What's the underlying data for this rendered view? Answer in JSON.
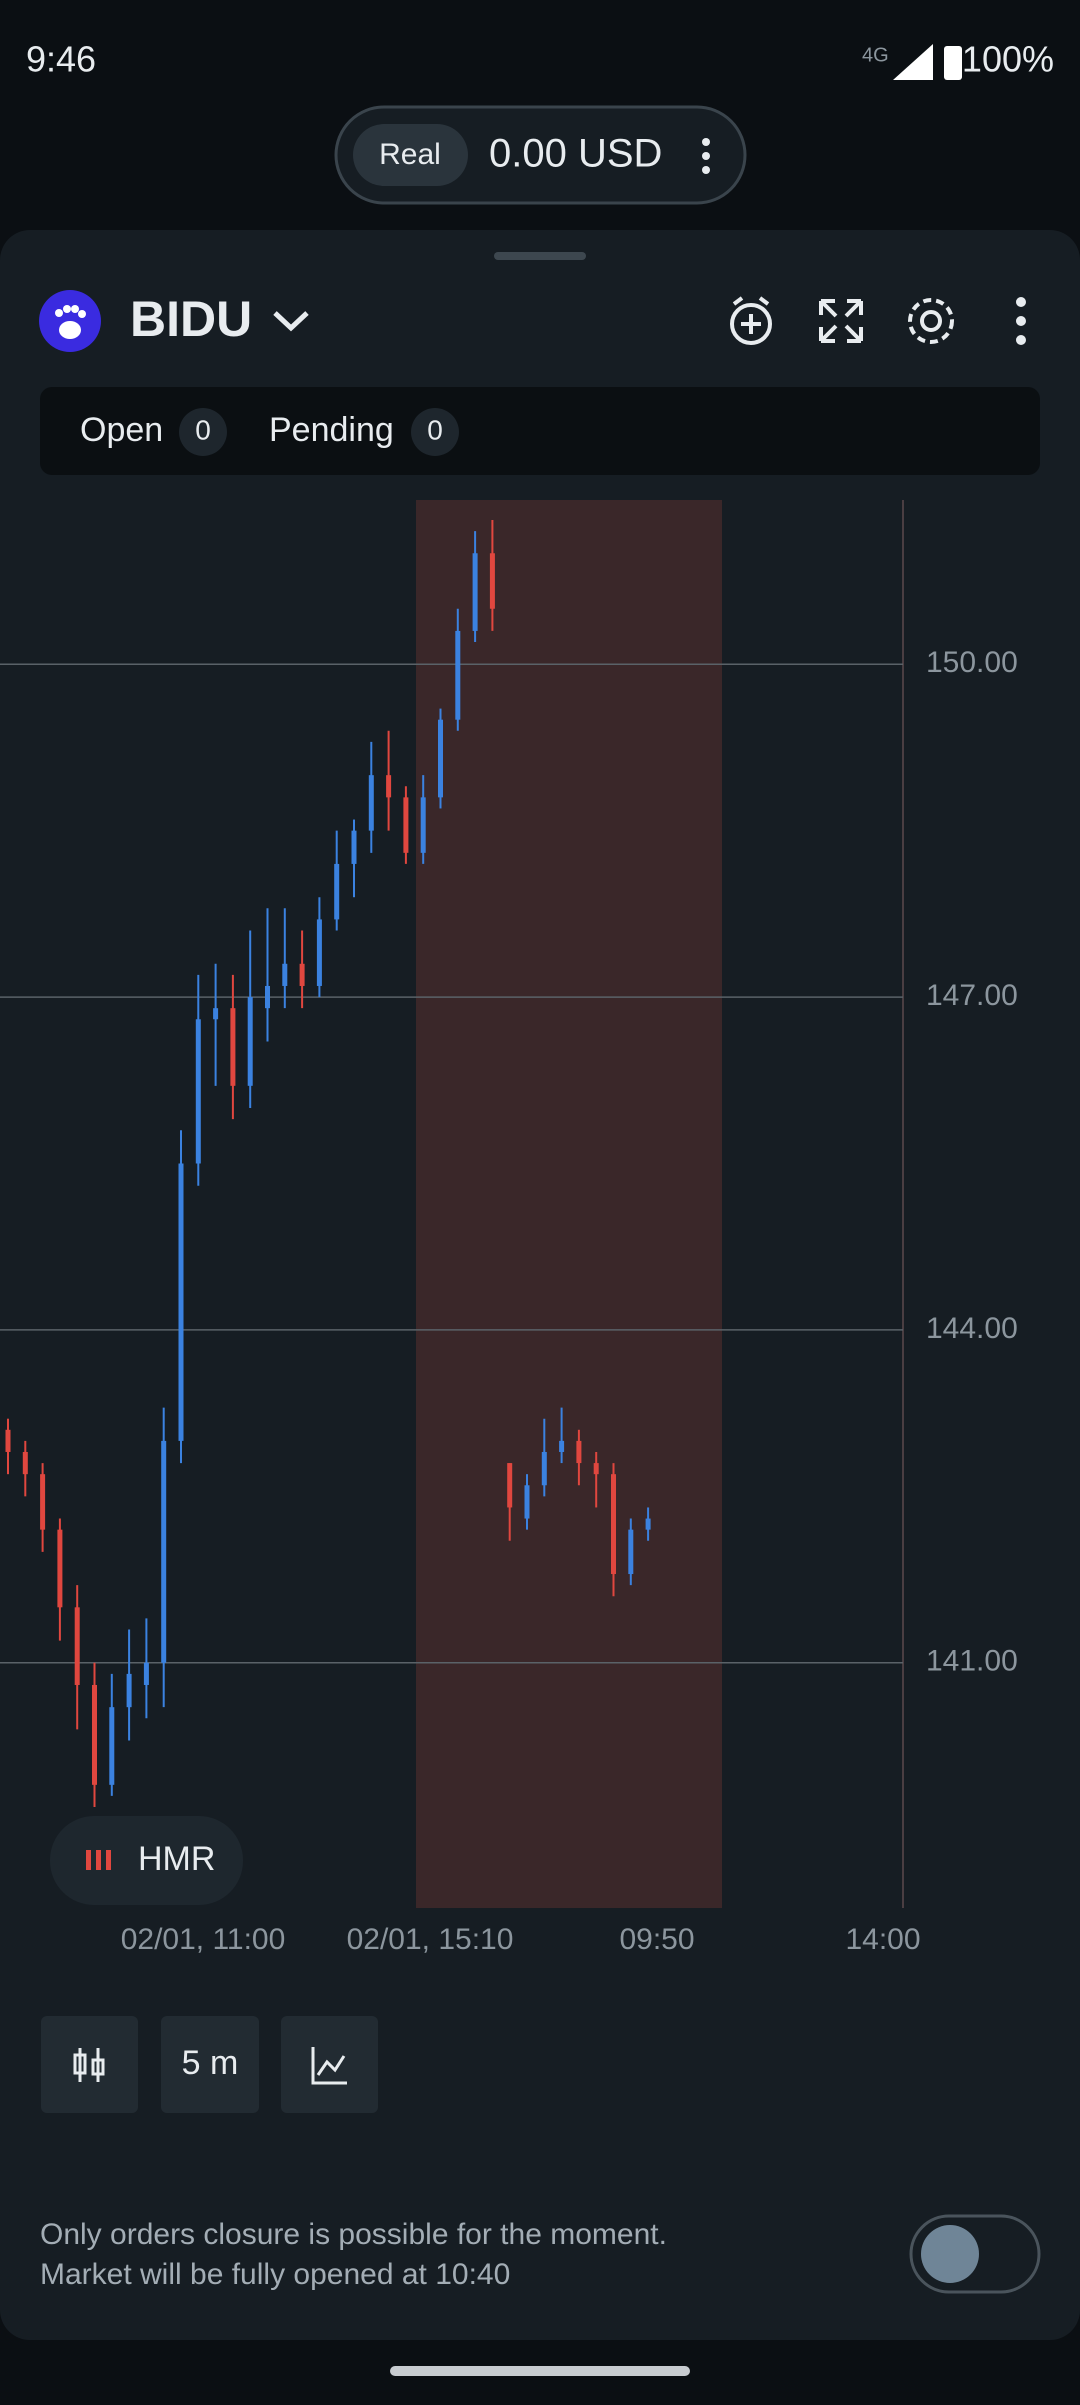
{
  "status_bar": {
    "time": "9:46",
    "network": "4G",
    "battery": "100%"
  },
  "account": {
    "mode": "Real",
    "balance": "0.00 USD"
  },
  "instrument": {
    "symbol": "BIDU"
  },
  "tabs": [
    {
      "label": "Open",
      "count": 0
    },
    {
      "label": "Pending",
      "count": 0
    }
  ],
  "chart_data": {
    "type": "candlestick",
    "up_color": "#3b82e0",
    "down_color": "#e0473f",
    "ylim": [
      138.79,
      151.48
    ],
    "yticks": [
      {
        "value": 150,
        "label": "150.00"
      },
      {
        "value": 147,
        "label": "147.00"
      },
      {
        "value": 144,
        "label": "144.00"
      },
      {
        "value": 141,
        "label": "141.00"
      }
    ],
    "xlabels": [
      "02/01, 11:00",
      "02/01, 15:10",
      "09:50",
      "14:00"
    ],
    "open": [
      143.1,
      142.9,
      142.7,
      142.2,
      141.5,
      140.8,
      139.9,
      140.6,
      140.8,
      141.0,
      143.0,
      145.5,
      146.8,
      146.9,
      146.2,
      146.9,
      147.1,
      147.3,
      147.1,
      147.7,
      148.2,
      148.5,
      149.0,
      148.8,
      148.3,
      148.8,
      149.5,
      150.3,
      151.0,
      142.8,
      142.3,
      142.6,
      142.9,
      143.0,
      142.8,
      142.7,
      141.8,
      142.2
    ],
    "high": [
      143.2,
      143.0,
      142.8,
      142.3,
      141.7,
      141.0,
      140.9,
      141.3,
      141.4,
      143.3,
      145.8,
      147.2,
      147.3,
      147.2,
      147.6,
      147.8,
      147.8,
      147.6,
      147.9,
      148.5,
      148.6,
      149.3,
      149.4,
      148.9,
      149.0,
      149.6,
      150.5,
      151.2,
      151.3,
      142.8,
      142.7,
      143.2,
      143.3,
      143.1,
      142.9,
      142.8,
      142.3,
      142.4
    ],
    "low": [
      142.7,
      142.5,
      142.0,
      141.2,
      140.4,
      139.7,
      139.8,
      140.3,
      140.5,
      140.6,
      142.8,
      145.3,
      146.2,
      145.9,
      146.0,
      146.6,
      146.9,
      146.9,
      147.0,
      147.6,
      147.9,
      148.3,
      148.5,
      148.2,
      148.2,
      148.7,
      149.4,
      150.2,
      150.3,
      142.1,
      142.2,
      142.5,
      142.8,
      142.6,
      142.4,
      141.6,
      141.7,
      142.1
    ],
    "close": [
      142.9,
      142.7,
      142.2,
      141.5,
      140.8,
      139.9,
      140.6,
      140.9,
      141.0,
      143.0,
      145.5,
      146.8,
      146.9,
      146.2,
      147.0,
      147.1,
      147.3,
      147.1,
      147.7,
      148.2,
      148.5,
      149.0,
      148.8,
      148.3,
      148.8,
      149.5,
      150.3,
      151.0,
      150.5,
      142.4,
      142.6,
      142.9,
      143.0,
      142.8,
      142.7,
      141.8,
      142.2,
      142.3
    ]
  },
  "indicator": {
    "label": "HMR"
  },
  "timeframe": {
    "label": "5 m"
  },
  "notice": {
    "line1": "Only orders closure is possible for the moment.",
    "line2": "Market will be fully opened at 10:40"
  }
}
